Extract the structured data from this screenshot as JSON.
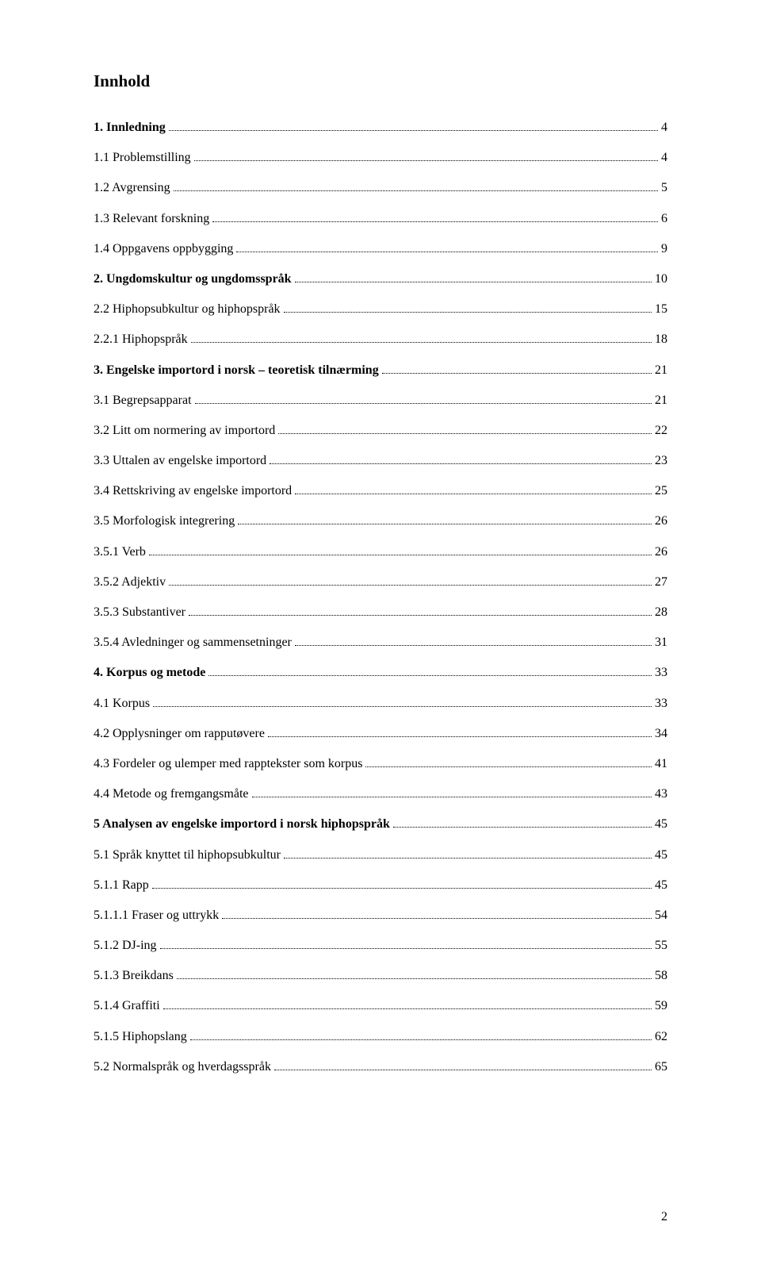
{
  "title": "Innhold",
  "page_number": "2",
  "entries": [
    {
      "label": "1. Innledning",
      "page": "4",
      "bold": true
    },
    {
      "label": "1.1 Problemstilling",
      "page": "4",
      "bold": false
    },
    {
      "label": "1.2 Avgrensing",
      "page": "5",
      "bold": false
    },
    {
      "label": "1.3 Relevant forskning",
      "page": "6",
      "bold": false
    },
    {
      "label": "1.4 Oppgavens oppbygging",
      "page": "9",
      "bold": false
    },
    {
      "label": "2. Ungdomskultur og ungdomsspråk",
      "page": "10",
      "bold": true
    },
    {
      "label": "2.2 Hiphopsubkultur og hiphopspråk",
      "page": "15",
      "bold": false
    },
    {
      "label": "2.2.1 Hiphopspråk",
      "page": "18",
      "bold": false
    },
    {
      "label": "3. Engelske importord i norsk – teoretisk tilnærming",
      "page": "21",
      "bold": true
    },
    {
      "label": "3.1 Begrepsapparat",
      "page": "21",
      "bold": false
    },
    {
      "label": "3.2 Litt om normering av importord",
      "page": "22",
      "bold": false
    },
    {
      "label": "3.3 Uttalen av engelske importord",
      "page": "23",
      "bold": false
    },
    {
      "label": "3.4 Rettskriving av engelske importord",
      "page": "25",
      "bold": false
    },
    {
      "label": "3.5 Morfologisk integrering",
      "page": "26",
      "bold": false
    },
    {
      "label": "3.5.1 Verb",
      "page": "26",
      "bold": false
    },
    {
      "label": "3.5.2 Adjektiv",
      "page": "27",
      "bold": false
    },
    {
      "label": "3.5.3 Substantiver",
      "page": "28",
      "bold": false
    },
    {
      "label": "3.5.4 Avledninger og sammensetninger",
      "page": "31",
      "bold": false
    },
    {
      "label": "4. Korpus og metode",
      "page": "33",
      "bold": true
    },
    {
      "label": "4.1 Korpus",
      "page": "33",
      "bold": false
    },
    {
      "label": "4.2 Opplysninger om rapputøvere",
      "page": "34",
      "bold": false
    },
    {
      "label": "4.3 Fordeler og ulemper med rapptekster som korpus",
      "page": "41",
      "bold": false
    },
    {
      "label": "4.4 Metode og fremgangsmåte",
      "page": "43",
      "bold": false
    },
    {
      "label": "5 Analysen av engelske importord i norsk hiphopspråk",
      "page": "45",
      "bold": true
    },
    {
      "label": "5.1 Språk knyttet til hiphopsubkultur",
      "page": "45",
      "bold": false
    },
    {
      "label": "5.1.1 Rapp",
      "page": "45",
      "bold": false
    },
    {
      "label": "5.1.1.1 Fraser og uttrykk",
      "page": "54",
      "bold": false
    },
    {
      "label": "5.1.2 DJ-ing",
      "page": "55",
      "bold": false
    },
    {
      "label": "5.1.3 Breikdans",
      "page": "58",
      "bold": false
    },
    {
      "label": "5.1.4 Graffiti",
      "page": "59",
      "bold": false
    },
    {
      "label": "5.1.5 Hiphopslang",
      "page": "62",
      "bold": false
    },
    {
      "label": "5.2 Normalspråk og hverdagsspråk",
      "page": "65",
      "bold": false
    }
  ]
}
